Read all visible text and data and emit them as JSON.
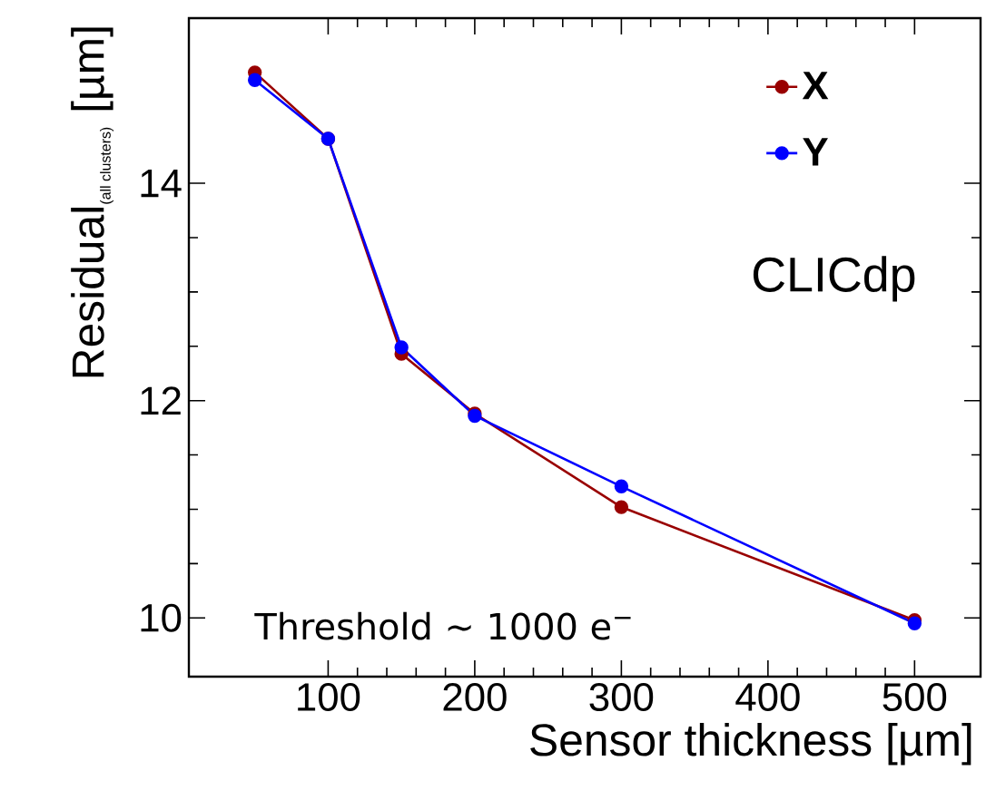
{
  "chart_data": {
    "type": "line",
    "xlabel": "Sensor thickness [µm]",
    "ylabel": "\\mbox{Residual}_{\\mbox{\\footnotesize (all clusters)}}\\ \\mbox{[µm]}",
    "x": [
      50,
      100,
      150,
      200,
      300,
      500
    ],
    "series": [
      {
        "name": "X",
        "color": "#990000",
        "values": [
          15.02,
          14.41,
          12.43,
          11.88,
          11.02,
          9.98
        ]
      },
      {
        "name": "Y",
        "color": "#0000ff",
        "values": [
          14.95,
          14.41,
          12.49,
          11.86,
          11.21,
          9.95
        ]
      }
    ],
    "xlim": [
      5,
      545
    ],
    "ylim": [
      9.46,
      15.52
    ],
    "xticks": [
      100,
      200,
      300,
      400,
      500
    ],
    "yticks": [
      10,
      12,
      14
    ],
    "marker": "circle",
    "legend": "top right",
    "grid": false,
    "annotations": [
      "Threshold ∼ 1000 e$^{−}$",
      "CLICdp"
    ]
  }
}
